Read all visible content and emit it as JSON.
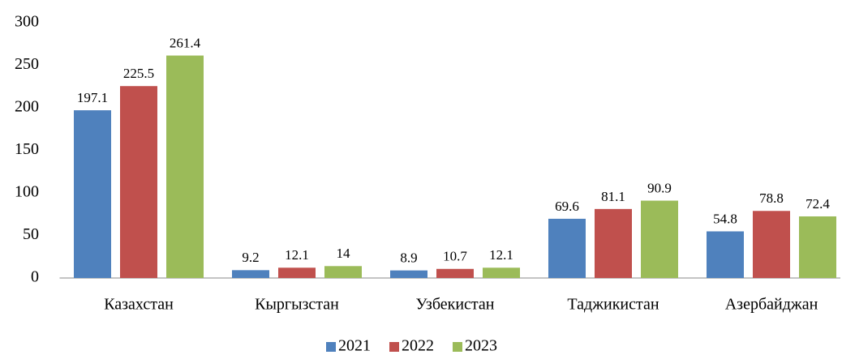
{
  "chart_data": {
    "type": "bar",
    "categories": [
      "Казахстан",
      "Кыргызстан",
      "Узбекистан",
      "Таджикистан",
      "Азербайджан"
    ],
    "series": [
      {
        "name": "2021",
        "color": "#4f81bd",
        "values": [
          197.1,
          9.2,
          8.9,
          69.6,
          54.8
        ]
      },
      {
        "name": "2022",
        "color": "#c0504d",
        "values": [
          225.5,
          12.1,
          10.7,
          81.1,
          78.8
        ]
      },
      {
        "name": "2023",
        "color": "#9bbb59",
        "values": [
          261.4,
          14,
          12.1,
          90.9,
          72.4
        ]
      }
    ],
    "ylim": [
      0,
      300
    ],
    "yticks": [
      0,
      50,
      100,
      150,
      200,
      250,
      300
    ],
    "grid": false,
    "legend": "bottom"
  }
}
